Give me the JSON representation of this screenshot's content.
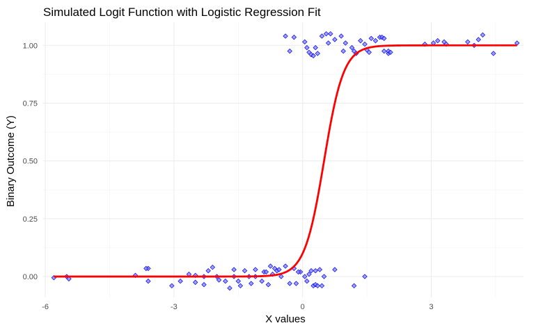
{
  "chart_data": {
    "type": "scatter",
    "title": "Simulated Logit Function with Logistic Regression Fit",
    "xlabel": "X values",
    "ylabel": "Binary Outcome (Y)",
    "xlim": [
      -6.05,
      5.15
    ],
    "ylim": [
      -0.09,
      1.1
    ],
    "x_ticks": [
      -6,
      -3,
      0,
      3
    ],
    "x_tick_labels": [
      "-6",
      "-3",
      "0",
      "3"
    ],
    "y_ticks": [
      0,
      0.25,
      0.5,
      0.75,
      1
    ],
    "y_tick_labels": [
      "0.00",
      "0.25",
      "0.50",
      "0.75",
      "1.00"
    ],
    "grid": true,
    "legend": "none",
    "colors": {
      "points_fill": "#8080ff",
      "points_stroke": "#0000ff",
      "fit_line": "#ff0000",
      "grid": "#ebebeb"
    },
    "series": [
      {
        "type": "scatter",
        "points": [
          [
            -5.8,
            -0.005
          ],
          [
            -5.5,
            0.0
          ],
          [
            -5.45,
            -0.01
          ],
          [
            -3.9,
            0.005
          ],
          [
            -3.6,
            0.035
          ],
          [
            -3.65,
            0.035
          ],
          [
            -3.6,
            -0.02
          ],
          [
            -3.05,
            -0.04
          ],
          [
            -2.85,
            -0.02
          ],
          [
            -2.65,
            0.01
          ],
          [
            -2.5,
            -0.025
          ],
          [
            -2.5,
            0.005
          ],
          [
            -2.3,
            0.0
          ],
          [
            -2.3,
            -0.035
          ],
          [
            -2.2,
            0.025
          ],
          [
            -2.1,
            0.04
          ],
          [
            -2.0,
            0.0
          ],
          [
            -1.95,
            -0.015
          ],
          [
            -1.8,
            -0.02
          ],
          [
            -1.7,
            -0.05
          ],
          [
            -1.6,
            0.0
          ],
          [
            -1.6,
            0.03
          ],
          [
            -1.5,
            -0.02
          ],
          [
            -1.45,
            -0.04
          ],
          [
            -1.35,
            0.025
          ],
          [
            -1.25,
            0.0
          ],
          [
            -1.2,
            -0.03
          ],
          [
            -1.1,
            0.03
          ],
          [
            -1.1,
            0.0
          ],
          [
            -0.95,
            -0.02
          ],
          [
            -0.9,
            0.02
          ],
          [
            -0.85,
            0.02
          ],
          [
            -0.8,
            -0.035
          ],
          [
            -0.75,
            0.045
          ],
          [
            -0.7,
            0.01
          ],
          [
            -0.65,
            0.035
          ],
          [
            -0.6,
            0.025
          ],
          [
            -0.55,
            0.03
          ],
          [
            -0.5,
            0.0
          ],
          [
            -0.4,
            0.045
          ],
          [
            -0.3,
            -0.03
          ],
          [
            -0.2,
            0.035
          ],
          [
            -0.15,
            -0.03
          ],
          [
            -0.05,
            0.02
          ],
          [
            -0.1,
            0.02
          ],
          [
            0.05,
            0.0
          ],
          [
            0.1,
            -0.02
          ],
          [
            0.15,
            0.01
          ],
          [
            0.2,
            0.025
          ],
          [
            0.25,
            -0.04
          ],
          [
            0.3,
            0.025
          ],
          [
            0.3,
            -0.035
          ],
          [
            0.35,
            -0.04
          ],
          [
            0.4,
            0.03
          ],
          [
            0.45,
            -0.04
          ],
          [
            0.5,
            0.0
          ],
          [
            0.75,
            0.03
          ],
          [
            1.2,
            -0.04
          ],
          [
            1.45,
            0.0
          ],
          [
            -0.4,
            1.04
          ],
          [
            -0.3,
            0.975
          ],
          [
            -0.2,
            1.035
          ],
          [
            0.05,
            1.015
          ],
          [
            0.1,
            0.99
          ],
          [
            0.15,
            0.97
          ],
          [
            0.2,
            0.96
          ],
          [
            0.25,
            0.955
          ],
          [
            0.3,
            0.99
          ],
          [
            0.35,
            0.965
          ],
          [
            0.45,
            1.04
          ],
          [
            0.55,
            1.05
          ],
          [
            0.6,
            1.01
          ],
          [
            0.65,
            1.05
          ],
          [
            0.75,
            1.025
          ],
          [
            0.9,
            1.04
          ],
          [
            0.95,
            0.975
          ],
          [
            1.0,
            1.01
          ],
          [
            1.15,
            0.99
          ],
          [
            1.2,
            0.975
          ],
          [
            1.25,
            0.965
          ],
          [
            1.35,
            1.02
          ],
          [
            1.45,
            1.005
          ],
          [
            1.5,
            0.98
          ],
          [
            1.55,
            0.97
          ],
          [
            1.6,
            1.03
          ],
          [
            1.7,
            1.02
          ],
          [
            1.8,
            1.035
          ],
          [
            1.85,
            1.035
          ],
          [
            1.9,
            0.975
          ],
          [
            1.9,
            1.03
          ],
          [
            2.0,
            0.965
          ],
          [
            2.0,
            0.975
          ],
          [
            2.05,
            0.97
          ],
          [
            2.85,
            1.005
          ],
          [
            3.05,
            1.01
          ],
          [
            3.15,
            1.02
          ],
          [
            3.3,
            1.015
          ],
          [
            3.35,
            1.005
          ],
          [
            3.85,
            1.015
          ],
          [
            4.0,
            1.0
          ],
          [
            4.1,
            1.025
          ],
          [
            4.2,
            1.045
          ],
          [
            4.45,
            0.965
          ],
          [
            5.0,
            1.01
          ]
        ]
      },
      {
        "type": "line",
        "model": "logistic",
        "intercept": -2.2,
        "slope": 4.4,
        "x_range": [
          -5.8,
          5.0
        ]
      }
    ]
  }
}
